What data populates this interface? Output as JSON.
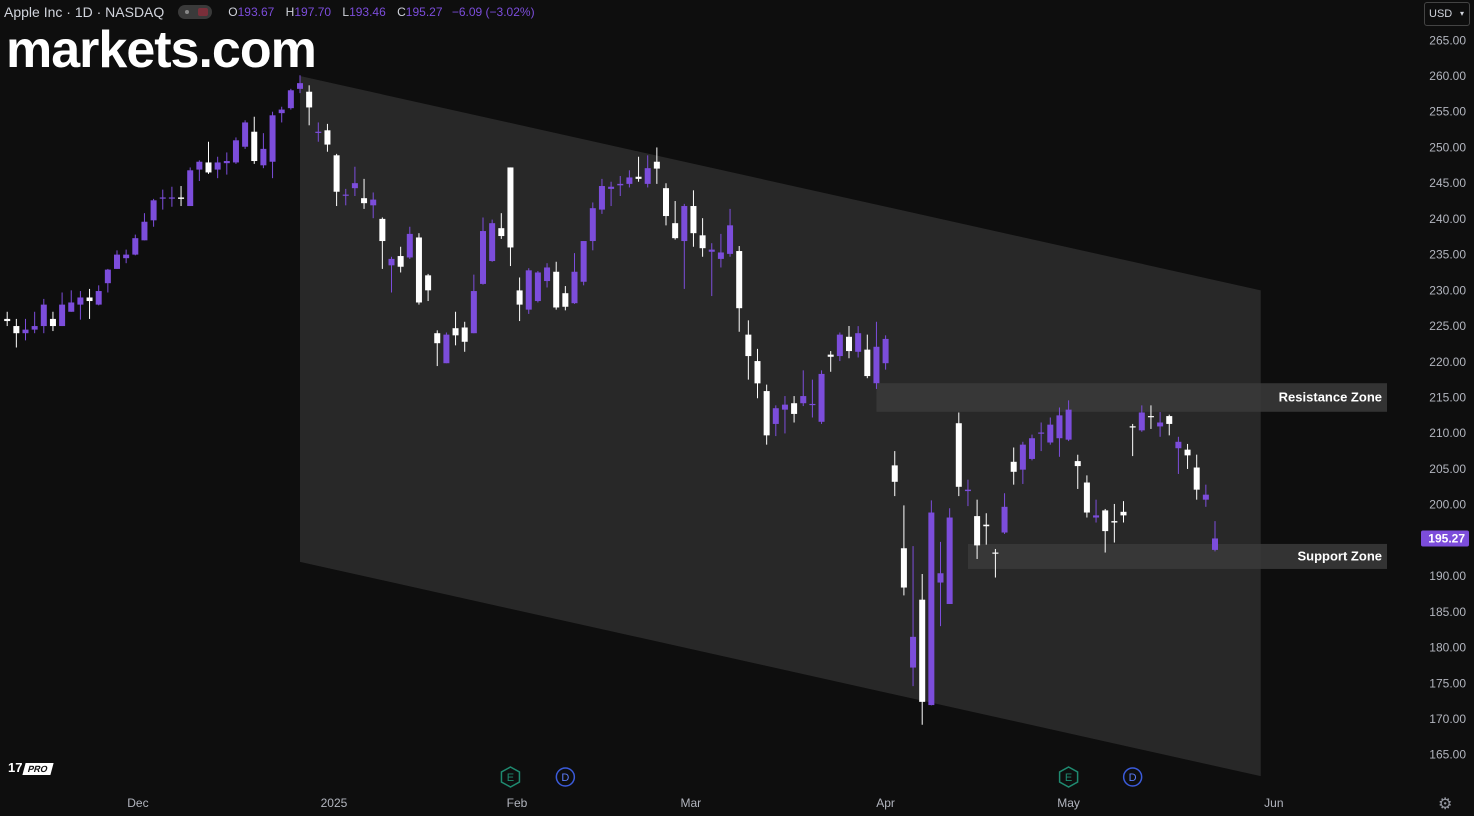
{
  "header": {
    "symbol": "Apple Inc · 1D · NASDAQ",
    "open_label": "O",
    "open": "193.67",
    "high_label": "H",
    "high": "197.70",
    "low_label": "L",
    "low": "193.46",
    "close_label": "C",
    "close": "195.27",
    "change": "−6.09 (−3.02%)"
  },
  "branding": {
    "logo": "markets.com",
    "tv_logo": "17",
    "tv_pro": "PRO"
  },
  "currency": {
    "label": "USD"
  },
  "colors": {
    "up": "#7c4ddb",
    "down": "#ffffff",
    "background": "#0e0e0e",
    "zone": "#3a3a3a",
    "channel": "#2b2b2b",
    "price_tag": "#7c4ddb"
  },
  "chart_data": {
    "type": "candlestick",
    "title": "Apple Inc · 1D · NASDAQ",
    "y_axis": {
      "min": 162,
      "max": 267,
      "ticks": [
        265,
        260,
        255,
        250,
        245,
        240,
        235,
        230,
        225,
        220,
        215,
        210,
        205,
        200,
        195,
        190,
        185,
        180,
        175,
        170,
        165
      ]
    },
    "x_axis": {
      "labels": [
        {
          "label": "Dec",
          "date": "2024-12-01"
        },
        {
          "label": "2025",
          "date": "2025-01-01"
        },
        {
          "label": "Feb",
          "date": "2025-02-01"
        },
        {
          "label": "Mar",
          "date": "2025-03-01"
        },
        {
          "label": "Apr",
          "date": "2025-04-01"
        },
        {
          "label": "May",
          "date": "2025-05-01"
        },
        {
          "label": "Jun",
          "date": "2025-06-01"
        }
      ]
    },
    "last_price": "195.27",
    "channel": {
      "upper": [
        [
          "2024-12-26",
          260
        ],
        [
          "2025-05-30",
          230
        ]
      ],
      "lower": [
        [
          "2024-12-26",
          192
        ],
        [
          "2025-05-30",
          162
        ]
      ]
    },
    "zones": [
      {
        "label": "Resistance Zone",
        "low": 213,
        "high": 217,
        "start": "2025-03-31"
      },
      {
        "label": "Support Zone",
        "low": 191,
        "high": 194.5,
        "start": "2025-04-15"
      }
    ],
    "events": [
      {
        "type": "E",
        "date": "2025-01-31"
      },
      {
        "type": "D",
        "date": "2025-02-10"
      },
      {
        "type": "E",
        "date": "2025-05-01"
      },
      {
        "type": "D",
        "date": "2025-05-12"
      }
    ],
    "candles": [
      {
        "d": "2024-11-08",
        "o": 226,
        "h": 227,
        "l": 225,
        "c": 225.7
      },
      {
        "d": "2024-11-11",
        "o": 225,
        "h": 226,
        "l": 222,
        "c": 224
      },
      {
        "d": "2024-11-12",
        "o": 224,
        "h": 226,
        "l": 223,
        "c": 224.5
      },
      {
        "d": "2024-11-13",
        "o": 224.5,
        "h": 227,
        "l": 224,
        "c": 225
      },
      {
        "d": "2024-11-14",
        "o": 225,
        "h": 228.8,
        "l": 224,
        "c": 228
      },
      {
        "d": "2024-11-15",
        "o": 226,
        "h": 227,
        "l": 224.3,
        "c": 225
      },
      {
        "d": "2024-11-18",
        "o": 225,
        "h": 229.7,
        "l": 225,
        "c": 228
      },
      {
        "d": "2024-11-19",
        "o": 227,
        "h": 230,
        "l": 227,
        "c": 228.3
      },
      {
        "d": "2024-11-20",
        "o": 228,
        "h": 229.9,
        "l": 225.9,
        "c": 229
      },
      {
        "d": "2024-11-21",
        "o": 229,
        "h": 230.2,
        "l": 226,
        "c": 228.5
      },
      {
        "d": "2024-11-22",
        "o": 228,
        "h": 230.7,
        "l": 227.9,
        "c": 229.9
      },
      {
        "d": "2024-11-25",
        "o": 231,
        "h": 233,
        "l": 229.7,
        "c": 232.9
      },
      {
        "d": "2024-11-26",
        "o": 233,
        "h": 235.6,
        "l": 233,
        "c": 235
      },
      {
        "d": "2024-11-27",
        "o": 234.5,
        "h": 235.7,
        "l": 233.8,
        "c": 235
      },
      {
        "d": "2024-11-29",
        "o": 235,
        "h": 237.8,
        "l": 234.9,
        "c": 237.3
      },
      {
        "d": "2024-12-02",
        "o": 237,
        "h": 240.8,
        "l": 237,
        "c": 239.6
      },
      {
        "d": "2024-12-03",
        "o": 239.8,
        "h": 242.8,
        "l": 238.9,
        "c": 242.6
      },
      {
        "d": "2024-12-04",
        "o": 242.9,
        "h": 244.1,
        "l": 241.3,
        "c": 243
      },
      {
        "d": "2024-12-05",
        "o": 243,
        "h": 244.5,
        "l": 241.7,
        "c": 243
      },
      {
        "d": "2024-12-06",
        "o": 243,
        "h": 244.6,
        "l": 241.8,
        "c": 242.8
      },
      {
        "d": "2024-12-09",
        "o": 241.8,
        "h": 247.2,
        "l": 241.8,
        "c": 246.8
      },
      {
        "d": "2024-12-10",
        "o": 246.9,
        "h": 248.2,
        "l": 245.3,
        "c": 248
      },
      {
        "d": "2024-12-11",
        "o": 247.9,
        "h": 250.8,
        "l": 246.3,
        "c": 246.5
      },
      {
        "d": "2024-12-12",
        "o": 246.9,
        "h": 248.7,
        "l": 245.7,
        "c": 247.9
      },
      {
        "d": "2024-12-13",
        "o": 247.8,
        "h": 249.3,
        "l": 246.2,
        "c": 248.1
      },
      {
        "d": "2024-12-16",
        "o": 247.9,
        "h": 251.4,
        "l": 247.7,
        "c": 251
      },
      {
        "d": "2024-12-17",
        "o": 250.1,
        "h": 253.8,
        "l": 249.8,
        "c": 253.5
      },
      {
        "d": "2024-12-18",
        "o": 252.2,
        "h": 254.3,
        "l": 247.7,
        "c": 248.1
      },
      {
        "d": "2024-12-19",
        "o": 247.5,
        "h": 252,
        "l": 247.1,
        "c": 249.8
      },
      {
        "d": "2024-12-20",
        "o": 248,
        "h": 255,
        "l": 245.7,
        "c": 254.5
      },
      {
        "d": "2024-12-23",
        "o": 254.8,
        "h": 255.7,
        "l": 253.5,
        "c": 255.3
      },
      {
        "d": "2024-12-24",
        "o": 255.5,
        "h": 258.2,
        "l": 255.3,
        "c": 258
      },
      {
        "d": "2024-12-26",
        "o": 258.2,
        "h": 260.1,
        "l": 257.6,
        "c": 259
      },
      {
        "d": "2024-12-27",
        "o": 257.8,
        "h": 258.7,
        "l": 253.1,
        "c": 255.6
      },
      {
        "d": "2024-12-30",
        "o": 252.2,
        "h": 253.5,
        "l": 250.8,
        "c": 252.2
      },
      {
        "d": "2024-12-31",
        "o": 252.4,
        "h": 253.3,
        "l": 249.4,
        "c": 250.4
      },
      {
        "d": "2025-01-02",
        "o": 248.9,
        "h": 249.1,
        "l": 241.8,
        "c": 243.8
      },
      {
        "d": "2025-01-03",
        "o": 243.4,
        "h": 244.2,
        "l": 241.9,
        "c": 243.4
      },
      {
        "d": "2025-01-06",
        "o": 244.3,
        "h": 247.3,
        "l": 243.2,
        "c": 245
      },
      {
        "d": "2025-01-07",
        "o": 242.9,
        "h": 245.6,
        "l": 241.4,
        "c": 242.2
      },
      {
        "d": "2025-01-08",
        "o": 241.9,
        "h": 243.7,
        "l": 240.1,
        "c": 242.7
      },
      {
        "d": "2025-01-10",
        "o": 240,
        "h": 240.2,
        "l": 233,
        "c": 236.9
      },
      {
        "d": "2025-01-13",
        "o": 233.5,
        "h": 234.7,
        "l": 229.7,
        "c": 234.4
      },
      {
        "d": "2025-01-14",
        "o": 234.8,
        "h": 236.1,
        "l": 232.5,
        "c": 233.3
      },
      {
        "d": "2025-01-15",
        "o": 234.6,
        "h": 238.9,
        "l": 234.4,
        "c": 237.9
      },
      {
        "d": "2025-01-16",
        "o": 237.4,
        "h": 238,
        "l": 228,
        "c": 228.3
      },
      {
        "d": "2025-01-17",
        "o": 232.1,
        "h": 232.3,
        "l": 228.5,
        "c": 230
      },
      {
        "d": "2025-01-21",
        "o": 224,
        "h": 224.4,
        "l": 219.4,
        "c": 222.6
      },
      {
        "d": "2025-01-22",
        "o": 219.8,
        "h": 224.1,
        "l": 219.8,
        "c": 223.8
      },
      {
        "d": "2025-01-23",
        "o": 224.7,
        "h": 227,
        "l": 222.3,
        "c": 223.7
      },
      {
        "d": "2025-01-24",
        "o": 224.8,
        "h": 225.6,
        "l": 221.4,
        "c": 222.8
      },
      {
        "d": "2025-01-27",
        "o": 224,
        "h": 232.2,
        "l": 224,
        "c": 229.9
      },
      {
        "d": "2025-01-28",
        "o": 230.9,
        "h": 240.2,
        "l": 230.8,
        "c": 238.3
      },
      {
        "d": "2025-01-29",
        "o": 234.1,
        "h": 239.9,
        "l": 234,
        "c": 239.4
      },
      {
        "d": "2025-01-30",
        "o": 238.7,
        "h": 240.8,
        "l": 237.2,
        "c": 237.6
      },
      {
        "d": "2025-01-31",
        "o": 247.2,
        "h": 247.2,
        "l": 233.4,
        "c": 236
      },
      {
        "d": "2025-02-03",
        "o": 229.99,
        "h": 231.8,
        "l": 225.7,
        "c": 228
      },
      {
        "d": "2025-02-04",
        "o": 227.3,
        "h": 233.1,
        "l": 226.7,
        "c": 232.8
      },
      {
        "d": "2025-02-05",
        "o": 228.5,
        "h": 232.7,
        "l": 228.3,
        "c": 232.5
      },
      {
        "d": "2025-02-06",
        "o": 231.3,
        "h": 233.8,
        "l": 230.4,
        "c": 233.2
      },
      {
        "d": "2025-02-07",
        "o": 232.6,
        "h": 234,
        "l": 227.3,
        "c": 227.6
      },
      {
        "d": "2025-02-10",
        "o": 229.6,
        "h": 230.6,
        "l": 227.2,
        "c": 227.7
      },
      {
        "d": "2025-02-11",
        "o": 228.2,
        "h": 235.2,
        "l": 228.1,
        "c": 232.6
      },
      {
        "d": "2025-02-12",
        "o": 231.2,
        "h": 236.9,
        "l": 230.7,
        "c": 236.9
      },
      {
        "d": "2025-02-13",
        "o": 236.9,
        "h": 242.3,
        "l": 235.6,
        "c": 241.5
      },
      {
        "d": "2025-02-14",
        "o": 241.3,
        "h": 245.6,
        "l": 240.7,
        "c": 244.6
      },
      {
        "d": "2025-02-18",
        "o": 244.2,
        "h": 245.2,
        "l": 241.8,
        "c": 244.5
      },
      {
        "d": "2025-02-19",
        "o": 244.7,
        "h": 246,
        "l": 243.2,
        "c": 244.9
      },
      {
        "d": "2025-02-20",
        "o": 244.9,
        "h": 246.8,
        "l": 244.4,
        "c": 245.8
      },
      {
        "d": "2025-02-21",
        "o": 245.9,
        "h": 248.7,
        "l": 245.2,
        "c": 245.6
      },
      {
        "d": "2025-02-24",
        "o": 244.9,
        "h": 248.9,
        "l": 244.4,
        "c": 247.1
      },
      {
        "d": "2025-02-25",
        "o": 248,
        "h": 250,
        "l": 244.9,
        "c": 247.04
      },
      {
        "d": "2025-02-26",
        "o": 244.3,
        "h": 244.98,
        "l": 239.1,
        "c": 240.4
      },
      {
        "d": "2025-02-27",
        "o": 239.4,
        "h": 242.5,
        "l": 237.1,
        "c": 237.3
      },
      {
        "d": "2025-02-28",
        "o": 236.9,
        "h": 242.1,
        "l": 230.2,
        "c": 241.8
      },
      {
        "d": "2025-03-03",
        "o": 241.8,
        "h": 244,
        "l": 236.1,
        "c": 238
      },
      {
        "d": "2025-03-04",
        "o": 237.7,
        "h": 240.1,
        "l": 234.7,
        "c": 235.9
      },
      {
        "d": "2025-03-05",
        "o": 235.4,
        "h": 236.6,
        "l": 229.2,
        "c": 235.7
      },
      {
        "d": "2025-03-06",
        "o": 234.4,
        "h": 237.9,
        "l": 233.2,
        "c": 235.3
      },
      {
        "d": "2025-03-07",
        "o": 235.1,
        "h": 241.4,
        "l": 234.7,
        "c": 239.1
      },
      {
        "d": "2025-03-10",
        "o": 235.5,
        "h": 236.2,
        "l": 224.2,
        "c": 227.5
      },
      {
        "d": "2025-03-11",
        "o": 223.8,
        "h": 225.8,
        "l": 217.5,
        "c": 220.8
      },
      {
        "d": "2025-03-12",
        "o": 220.1,
        "h": 221.8,
        "l": 214.9,
        "c": 216.98
      },
      {
        "d": "2025-03-13",
        "o": 215.9,
        "h": 216.8,
        "l": 208.4,
        "c": 209.7
      },
      {
        "d": "2025-03-14",
        "o": 211.3,
        "h": 213.9,
        "l": 209.6,
        "c": 213.5
      },
      {
        "d": "2025-03-17",
        "o": 213.3,
        "h": 215.2,
        "l": 209.97,
        "c": 214
      },
      {
        "d": "2025-03-18",
        "o": 214.2,
        "h": 215.2,
        "l": 211.5,
        "c": 212.7
      },
      {
        "d": "2025-03-19",
        "o": 214.2,
        "h": 218.8,
        "l": 213.8,
        "c": 215.2
      },
      {
        "d": "2025-03-20",
        "o": 213.99,
        "h": 217.5,
        "l": 212.2,
        "c": 214.1
      },
      {
        "d": "2025-03-21",
        "o": 211.6,
        "h": 218.8,
        "l": 211.3,
        "c": 218.3
      },
      {
        "d": "2025-03-24",
        "o": 221,
        "h": 221.5,
        "l": 218.6,
        "c": 220.7
      },
      {
        "d": "2025-03-25",
        "o": 220.8,
        "h": 224.1,
        "l": 220.1,
        "c": 223.8
      },
      {
        "d": "2025-03-26",
        "o": 223.5,
        "h": 225,
        "l": 220.5,
        "c": 221.5
      },
      {
        "d": "2025-03-27",
        "o": 221.4,
        "h": 224.99,
        "l": 220.6,
        "c": 224
      },
      {
        "d": "2025-03-28",
        "o": 221.7,
        "h": 223.8,
        "l": 217.7,
        "c": 218
      },
      {
        "d": "2025-03-31",
        "o": 217,
        "h": 225.6,
        "l": 216.2,
        "c": 222.1
      },
      {
        "d": "2025-04-01",
        "o": 219.8,
        "h": 223.7,
        "l": 218.9,
        "c": 223.2
      },
      {
        "d": "2025-04-03",
        "o": 205.5,
        "h": 207.5,
        "l": 201.2,
        "c": 203.2
      },
      {
        "d": "2025-04-04",
        "o": 193.9,
        "h": 199.9,
        "l": 187.3,
        "c": 188.4
      },
      {
        "d": "2025-04-07",
        "o": 177.2,
        "h": 194.2,
        "l": 174.6,
        "c": 181.5
      },
      {
        "d": "2025-04-08",
        "o": 186.7,
        "h": 190.3,
        "l": 169.2,
        "c": 172.4
      },
      {
        "d": "2025-04-09",
        "o": 171.95,
        "h": 200.6,
        "l": 171.9,
        "c": 198.9
      },
      {
        "d": "2025-04-10",
        "o": 189.1,
        "h": 194.8,
        "l": 183,
        "c": 190.4
      },
      {
        "d": "2025-04-11",
        "o": 186.1,
        "h": 199.5,
        "l": 186.1,
        "c": 198.2
      },
      {
        "d": "2025-04-14",
        "o": 211.4,
        "h": 212.9,
        "l": 201.2,
        "c": 202.5
      },
      {
        "d": "2025-04-15",
        "o": 201.9,
        "h": 203.5,
        "l": 199.8,
        "c": 202.1
      },
      {
        "d": "2025-04-16",
        "o": 198.4,
        "h": 200.7,
        "l": 192.4,
        "c": 194.3
      },
      {
        "d": "2025-04-17",
        "o": 197.2,
        "h": 198.8,
        "l": 194.4,
        "c": 196.98
      },
      {
        "d": "2025-04-21",
        "o": 193.3,
        "h": 193.8,
        "l": 189.8,
        "c": 193.2
      },
      {
        "d": "2025-04-22",
        "o": 196.1,
        "h": 201.6,
        "l": 195.9,
        "c": 199.7
      },
      {
        "d": "2025-04-23",
        "o": 206,
        "h": 208,
        "l": 202.8,
        "c": 204.6
      },
      {
        "d": "2025-04-24",
        "o": 204.9,
        "h": 208.8,
        "l": 202.9,
        "c": 208.4
      },
      {
        "d": "2025-04-25",
        "o": 206.4,
        "h": 209.8,
        "l": 206.2,
        "c": 209.3
      },
      {
        "d": "2025-04-28",
        "o": 210,
        "h": 211.5,
        "l": 207.5,
        "c": 210.1
      },
      {
        "d": "2025-04-29",
        "o": 208.7,
        "h": 212.2,
        "l": 208.4,
        "c": 211.2
      },
      {
        "d": "2025-04-30",
        "o": 209.3,
        "h": 213.6,
        "l": 206.7,
        "c": 212.5
      },
      {
        "d": "2025-05-01",
        "o": 209.1,
        "h": 214.6,
        "l": 208.9,
        "c": 213.3
      },
      {
        "d": "2025-05-02",
        "o": 206.1,
        "h": 206.99,
        "l": 202.2,
        "c": 205.4
      },
      {
        "d": "2025-05-05",
        "o": 203.1,
        "h": 204.1,
        "l": 198.2,
        "c": 198.9
      },
      {
        "d": "2025-05-06",
        "o": 198.2,
        "h": 200.7,
        "l": 197.5,
        "c": 198.5
      },
      {
        "d": "2025-05-07",
        "o": 199.2,
        "h": 199.4,
        "l": 193.3,
        "c": 196.3
      },
      {
        "d": "2025-05-08",
        "o": 197.7,
        "h": 200.1,
        "l": 194.7,
        "c": 197.5
      },
      {
        "d": "2025-05-09",
        "o": 199,
        "h": 200.5,
        "l": 197.5,
        "c": 198.5
      },
      {
        "d": "2025-05-12",
        "o": 210.97,
        "h": 211.3,
        "l": 206.8,
        "c": 210.8
      },
      {
        "d": "2025-05-13",
        "o": 210.4,
        "h": 213.9,
        "l": 210.2,
        "c": 212.9
      },
      {
        "d": "2025-05-14",
        "o": 212.4,
        "h": 213.9,
        "l": 210.6,
        "c": 212.3
      },
      {
        "d": "2025-05-15",
        "o": 210.95,
        "h": 212.96,
        "l": 209.5,
        "c": 211.5
      },
      {
        "d": "2025-05-16",
        "o": 212.4,
        "h": 212.6,
        "l": 209.7,
        "c": 211.3
      },
      {
        "d": "2025-05-19",
        "o": 207.9,
        "h": 209.5,
        "l": 204.3,
        "c": 208.8
      },
      {
        "d": "2025-05-20",
        "o": 207.7,
        "h": 208.5,
        "l": 205,
        "c": 206.9
      },
      {
        "d": "2025-05-21",
        "o": 205.2,
        "h": 207,
        "l": 200.7,
        "c": 202.1
      },
      {
        "d": "2025-05-22",
        "o": 200.7,
        "h": 202.8,
        "l": 199.7,
        "c": 201.4
      },
      {
        "d": "2025-05-23",
        "o": 193.67,
        "h": 197.7,
        "l": 193.46,
        "c": 195.27
      }
    ]
  }
}
